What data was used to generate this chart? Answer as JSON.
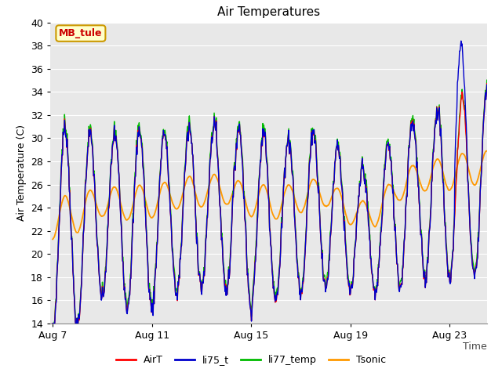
{
  "title": "Air Temperatures",
  "ylabel": "Air Temperature (C)",
  "ylim": [
    14,
    40
  ],
  "yticks": [
    14,
    16,
    18,
    20,
    22,
    24,
    26,
    28,
    30,
    32,
    34,
    36,
    38,
    40
  ],
  "xtick_labels": [
    "Aug 7",
    "Aug 11",
    "Aug 15",
    "Aug 19",
    "Aug 23"
  ],
  "series_colors": {
    "AirT": "#ff0000",
    "li75_t": "#0000cc",
    "li77_temp": "#00bb00",
    "Tsonic": "#ff9900"
  },
  "annotation_text": "MB_tule",
  "annotation_color": "#cc0000",
  "annotation_bg": "#ffffcc",
  "annotation_border": "#cc9900",
  "plot_bg": "#e8e8e8",
  "linewidth": 1.0
}
